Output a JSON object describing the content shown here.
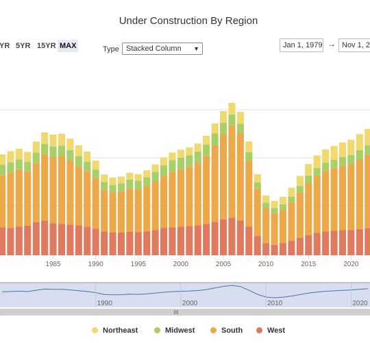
{
  "title": "Under Construction By Region",
  "range_buttons": [
    "YR",
    "5YR",
    "15YR",
    "MAX"
  ],
  "active_range": "MAX",
  "type_label": "Type",
  "type_value": "Stacked Column",
  "date_from": "Jan 1, 1979",
  "date_arrow": "→",
  "date_to": "Nov 1, 2",
  "scrollbar_grip": "III",
  "colors": {
    "northeast": "#f0d96f",
    "midwest": "#a8cf68",
    "south": "#eda84a",
    "west": "#e07a5f",
    "navigator_line": "#4f6fa8",
    "navigator_fill": "#d6def0"
  },
  "chart_data": {
    "type": "bar",
    "stacked": true,
    "title": "Under Construction By Region",
    "x": [
      1979,
      1980,
      1981,
      1982,
      1983,
      1984,
      1985,
      1986,
      1987,
      1988,
      1989,
      1990,
      1991,
      1992,
      1993,
      1994,
      1995,
      1996,
      1997,
      1998,
      1999,
      2000,
      2001,
      2002,
      2003,
      2004,
      2005,
      2006,
      2007,
      2008,
      2009,
      2010,
      2011,
      2012,
      2013,
      2014,
      2015,
      2016,
      2017,
      2018,
      2019,
      2020,
      2021,
      2022
    ],
    "x_tick_labels": [
      "1985",
      "1990",
      "1995",
      "2000",
      "2005",
      "2010",
      "2015",
      "2020"
    ],
    "series": [
      {
        "name": "Northeast",
        "values": [
          30,
          32,
          31,
          29,
          32,
          33,
          34,
          34,
          33,
          32,
          29,
          26,
          22,
          21,
          20,
          20,
          19,
          20,
          21,
          22,
          22,
          23,
          23,
          23,
          25,
          29,
          33,
          34,
          34,
          31,
          24,
          21,
          21,
          22,
          25,
          29,
          33,
          36,
          38,
          40,
          42,
          44,
          46,
          47
        ]
      },
      {
        "name": "Midwest",
        "values": [
          30,
          29,
          28,
          28,
          30,
          30,
          31,
          30,
          29,
          28,
          27,
          25,
          22,
          22,
          23,
          25,
          25,
          26,
          28,
          31,
          33,
          33,
          33,
          32,
          33,
          34,
          33,
          31,
          28,
          24,
          19,
          16,
          15,
          16,
          17,
          19,
          21,
          22,
          23,
          24,
          25,
          26,
          27,
          28
        ]
      },
      {
        "name": "South",
        "values": [
          150,
          160,
          165,
          155,
          170,
          190,
          190,
          195,
          185,
          170,
          160,
          145,
          120,
          115,
          118,
          125,
          123,
          130,
          140,
          150,
          160,
          165,
          170,
          180,
          195,
          220,
          245,
          265,
          250,
          190,
          135,
          100,
          90,
          95,
          110,
          130,
          150,
          165,
          175,
          180,
          185,
          190,
          200,
          210
        ]
      },
      {
        "name": "West",
        "values": [
          80,
          78,
          82,
          85,
          95,
          100,
          92,
          90,
          88,
          86,
          82,
          76,
          68,
          65,
          65,
          67,
          66,
          68,
          72,
          78,
          80,
          82,
          84,
          86,
          90,
          96,
          103,
          108,
          100,
          82,
          55,
          35,
          30,
          35,
          42,
          50,
          58,
          64,
          68,
          70,
          72,
          72,
          75,
          78
        ]
      }
    ],
    "ylim": [
      0,
      560
    ],
    "legend": "bottom",
    "grid": true
  }
}
